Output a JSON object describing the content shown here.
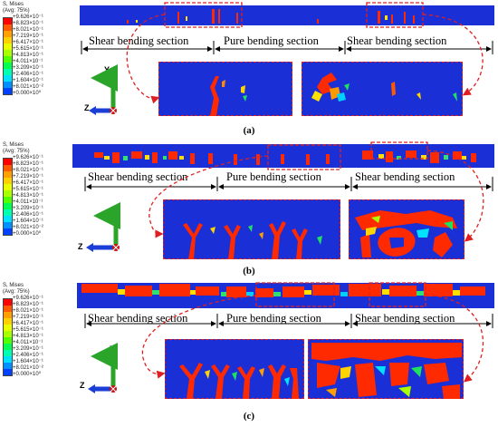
{
  "legend": {
    "title1": "S, Mises",
    "title2": "(Avg: 75%)",
    "values": [
      "+9.626×10⁻¹",
      "+8.823×10⁻¹",
      "+8.021×10⁻¹",
      "+7.219×10⁻¹",
      "+6.417×10⁻¹",
      "+5.615×10⁻¹",
      "+4.813×10⁻¹",
      "+4.011×10⁻¹",
      "+3.209×10⁻¹",
      "+2.406×10⁻¹",
      "+1.604×10⁻¹",
      "+8.021×10⁻²",
      "+0.000×10⁰"
    ],
    "colors": [
      "#ff0000",
      "#ff5a00",
      "#ffa000",
      "#ffd000",
      "#e8ff00",
      "#a8ff00",
      "#50ff00",
      "#00ff50",
      "#00ffb0",
      "#00e0ff",
      "#0090ff",
      "#0040ff",
      "#0000c8"
    ]
  },
  "sections": {
    "shear": "Shear bending section",
    "pure": "Pure bending section"
  },
  "axes": {
    "y": "Y",
    "z": "Z"
  },
  "captions": [
    "(a)",
    "(b)",
    "(c)"
  ]
}
